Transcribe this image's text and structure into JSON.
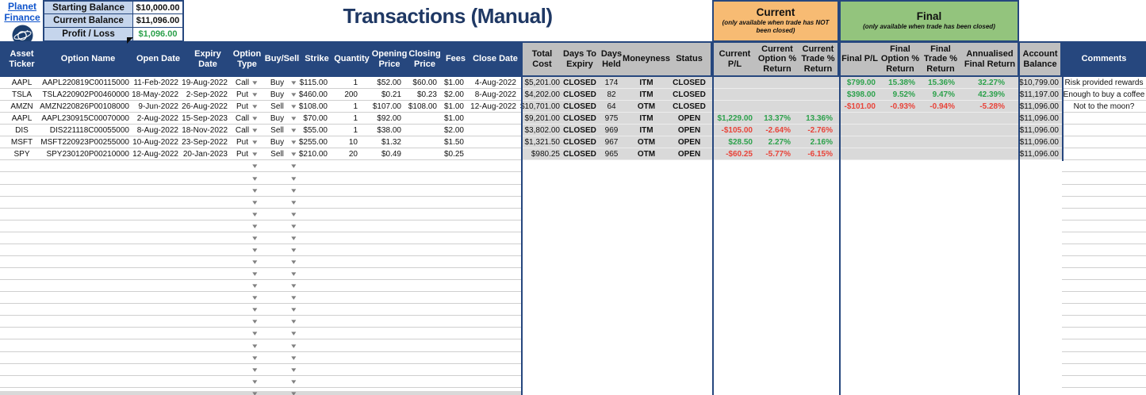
{
  "colors": {
    "navy": "#26477e",
    "titlenavy": "#1f3864",
    "lightblue": "#c5d5ec",
    "orange": "#f7bb73",
    "greenband": "#93c47d",
    "grayhdr": "#bfbfbf",
    "graycell": "#d9d9d9",
    "green": "#2da14c",
    "red": "#e8443a",
    "link": "#1155cc",
    "grid": "#cfcfcf"
  },
  "logo": {
    "line1": "Planet",
    "line2": "Finance"
  },
  "summary_box": {
    "rows": [
      {
        "label": "Starting Balance",
        "value": "$10,000.00",
        "value_color": "black"
      },
      {
        "label": "Current Balance",
        "value": "$11,096.00",
        "value_color": "black"
      },
      {
        "label": "Profit / Loss",
        "value": "$1,096.00",
        "value_color": "green"
      }
    ]
  },
  "title": "Transactions (Manual)",
  "group_headers": {
    "current": {
      "title": "Current",
      "subtitle": "(only available when trade has NOT been closed)"
    },
    "final": {
      "title": "Final",
      "subtitle": "(only available when trade has been closed)"
    }
  },
  "icons": {
    "dropdown_arrow": "▾"
  },
  "columns": [
    {
      "key": "ticker",
      "label": "Asset\nTicker"
    },
    {
      "key": "option_name",
      "label": "Option Name"
    },
    {
      "key": "open_date",
      "label": "Open Date"
    },
    {
      "key": "expiry_date",
      "label": "Expiry\nDate"
    },
    {
      "key": "option_type",
      "label": "Option\nType"
    },
    {
      "key": "buy_sell",
      "label": "Buy/Sell"
    },
    {
      "key": "strike",
      "label": "Strike"
    },
    {
      "key": "quantity",
      "label": "Quantity"
    },
    {
      "key": "opening_price",
      "label": "Opening\nPrice"
    },
    {
      "key": "closing_price",
      "label": "Closing\nPrice"
    },
    {
      "key": "fees",
      "label": "Fees"
    },
    {
      "key": "close_date",
      "label": "Close Date"
    },
    {
      "key": "total_cost",
      "label": "Total\nCost"
    },
    {
      "key": "days_to_expiry",
      "label": "Days To\nExpiry"
    },
    {
      "key": "days_held",
      "label": "Days\nHeld"
    },
    {
      "key": "moneyness",
      "label": "Moneyness"
    },
    {
      "key": "status",
      "label": "Status"
    },
    {
      "key": "current_pl",
      "label": "Current\nP/L"
    },
    {
      "key": "current_option_return",
      "label": "Current\nOption %\nReturn"
    },
    {
      "key": "current_trade_return",
      "label": "Current\nTrade %\nReturn"
    },
    {
      "key": "final_pl",
      "label": "Final P/L"
    },
    {
      "key": "final_option_return",
      "label": "Final\nOption %\nReturn"
    },
    {
      "key": "final_trade_return",
      "label": "Final\nTrade %\nReturn"
    },
    {
      "key": "annualised_final_return",
      "label": "Annualised\nFinal Return"
    },
    {
      "key": "account_balance",
      "label": "Account\nBalance"
    },
    {
      "key": "comments",
      "label": "Comments"
    }
  ],
  "rows": [
    {
      "ticker": "AAPL",
      "option_name": "AAPL220819C00115000",
      "open_date": "11-Feb-2022",
      "expiry_date": "19-Aug-2022",
      "option_type": "Call",
      "buy_sell": "Buy",
      "strike": "$115.00",
      "quantity": "1",
      "opening_price": "$52.00",
      "closing_price": "$60.00",
      "fees": "$1.00",
      "close_date": "4-Aug-2022",
      "total_cost": "$5,201.00",
      "days_to_expiry": "CLOSED",
      "days_held": "174",
      "moneyness": "ITM",
      "status": "CLOSED",
      "current_pl": "",
      "current_option_return": "",
      "current_trade_return": "",
      "final_pl": "$799.00",
      "final_option_return": "15.38%",
      "final_trade_return": "15.36%",
      "annualised_final_return": "32.27%",
      "account_balance": "$10,799.00",
      "comments": "Risk provided rewards"
    },
    {
      "ticker": "TSLA",
      "option_name": "TSLA220902P00460000",
      "open_date": "18-May-2022",
      "expiry_date": "2-Sep-2022",
      "option_type": "Put",
      "buy_sell": "Buy",
      "strike": "$460.00",
      "quantity": "200",
      "opening_price": "$0.21",
      "closing_price": "$0.23",
      "fees": "$2.00",
      "close_date": "8-Aug-2022",
      "total_cost": "$4,202.00",
      "days_to_expiry": "CLOSED",
      "days_held": "82",
      "moneyness": "ITM",
      "status": "CLOSED",
      "current_pl": "",
      "current_option_return": "",
      "current_trade_return": "",
      "final_pl": "$398.00",
      "final_option_return": "9.52%",
      "final_trade_return": "9.47%",
      "annualised_final_return": "42.39%",
      "account_balance": "$11,197.00",
      "comments": "Enough to buy a coffee"
    },
    {
      "ticker": "AMZN",
      "option_name": "AMZN220826P00108000",
      "open_date": "9-Jun-2022",
      "expiry_date": "26-Aug-2022",
      "option_type": "Put",
      "buy_sell": "Sell",
      "strike": "$108.00",
      "quantity": "1",
      "opening_price": "$107.00",
      "closing_price": "$108.00",
      "fees": "$1.00",
      "close_date": "12-Aug-2022",
      "total_cost": "$10,701.00",
      "days_to_expiry": "CLOSED",
      "days_held": "64",
      "moneyness": "OTM",
      "status": "CLOSED",
      "current_pl": "",
      "current_option_return": "",
      "current_trade_return": "",
      "final_pl": "-$101.00",
      "final_option_return": "-0.93%",
      "final_trade_return": "-0.94%",
      "annualised_final_return": "-5.28%",
      "account_balance": "$11,096.00",
      "comments": "Not to the moon?"
    },
    {
      "ticker": "AAPL",
      "option_name": "AAPL230915C00070000",
      "open_date": "2-Aug-2022",
      "expiry_date": "15-Sep-2023",
      "option_type": "Call",
      "buy_sell": "Buy",
      "strike": "$70.00",
      "quantity": "1",
      "opening_price": "$92.00",
      "closing_price": "",
      "fees": "$1.00",
      "close_date": "",
      "total_cost": "$9,201.00",
      "days_to_expiry": "CLOSED",
      "days_held": "975",
      "moneyness": "ITM",
      "status": "OPEN",
      "current_pl": "$1,229.00",
      "current_option_return": "13.37%",
      "current_trade_return": "13.36%",
      "final_pl": "",
      "final_option_return": "",
      "final_trade_return": "",
      "annualised_final_return": "",
      "account_balance": "$11,096.00",
      "comments": ""
    },
    {
      "ticker": "DIS",
      "option_name": "DIS221118C00055000",
      "open_date": "8-Aug-2022",
      "expiry_date": "18-Nov-2022",
      "option_type": "Call",
      "buy_sell": "Sell",
      "strike": "$55.00",
      "quantity": "1",
      "opening_price": "$38.00",
      "closing_price": "",
      "fees": "$2.00",
      "close_date": "",
      "total_cost": "$3,802.00",
      "days_to_expiry": "CLOSED",
      "days_held": "969",
      "moneyness": "ITM",
      "status": "OPEN",
      "current_pl": "-$105.00",
      "current_option_return": "-2.64%",
      "current_trade_return": "-2.76%",
      "final_pl": "",
      "final_option_return": "",
      "final_trade_return": "",
      "annualised_final_return": "",
      "account_balance": "$11,096.00",
      "comments": ""
    },
    {
      "ticker": "MSFT",
      "option_name": "MSFT220923P00255000",
      "open_date": "10-Aug-2022",
      "expiry_date": "23-Sep-2022",
      "option_type": "Put",
      "buy_sell": "Buy",
      "strike": "$255.00",
      "quantity": "10",
      "opening_price": "$1.32",
      "closing_price": "",
      "fees": "$1.50",
      "close_date": "",
      "total_cost": "$1,321.50",
      "days_to_expiry": "CLOSED",
      "days_held": "967",
      "moneyness": "OTM",
      "status": "OPEN",
      "current_pl": "$28.50",
      "current_option_return": "2.27%",
      "current_trade_return": "2.16%",
      "final_pl": "",
      "final_option_return": "",
      "final_trade_return": "",
      "annualised_final_return": "",
      "account_balance": "$11,096.00",
      "comments": ""
    },
    {
      "ticker": "SPY",
      "option_name": "SPY230120P00210000",
      "open_date": "12-Aug-2022",
      "expiry_date": "20-Jan-2023",
      "option_type": "Put",
      "buy_sell": "Sell",
      "strike": "$210.00",
      "quantity": "20",
      "opening_price": "$0.49",
      "closing_price": "",
      "fees": "$0.25",
      "close_date": "",
      "total_cost": "$980.25",
      "days_to_expiry": "CLOSED",
      "days_held": "965",
      "moneyness": "OTM",
      "status": "OPEN",
      "current_pl": "-$60.25",
      "current_option_return": "-5.77%",
      "current_trade_return": "-6.15%",
      "final_pl": "",
      "final_option_return": "",
      "final_trade_return": "",
      "annualised_final_return": "",
      "account_balance": "$11,096.00",
      "comments": ""
    }
  ],
  "empty_row_count": 20
}
